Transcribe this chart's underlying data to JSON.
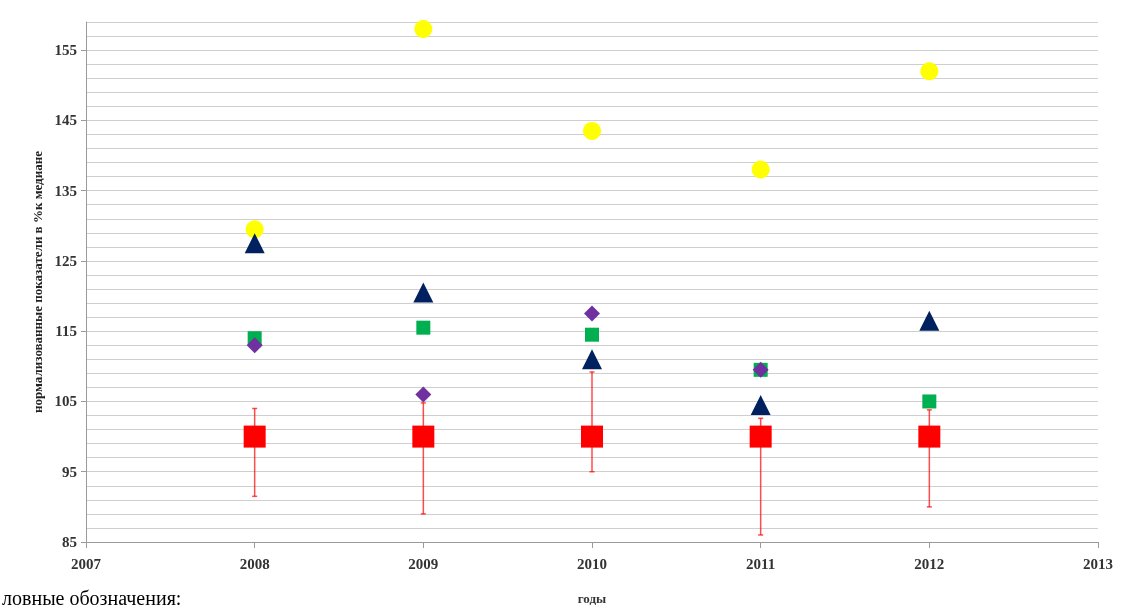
{
  "chart_data": {
    "type": "scatter",
    "xlabel": "годы",
    "ylabel": "нормализованные показатели в %к медиане",
    "annotations": [
      "ловные обозначения:"
    ],
    "x": [
      2008,
      2009,
      2010,
      2011,
      2012
    ],
    "xlim": [
      2007,
      2013
    ],
    "xticks": [
      2007,
      2008,
      2009,
      2010,
      2011,
      2012,
      2013
    ],
    "ylim": [
      85,
      159
    ],
    "yticks": [
      85,
      95,
      105,
      115,
      125,
      135,
      145,
      155
    ],
    "grid": "y",
    "series": [
      {
        "color": "#ff0000",
        "marker": "square",
        "values": [
          100,
          100,
          100,
          100,
          100
        ],
        "errors": [
          [
            91.5,
            104
          ],
          [
            89,
            104.8
          ],
          [
            95,
            109.2
          ],
          [
            86,
            102.6
          ],
          [
            90,
            103.8
          ]
        ]
      },
      {
        "color": "#ffff00",
        "marker": "circle",
        "values": [
          129.5,
          158,
          143.5,
          138,
          152
        ]
      },
      {
        "color": "#002060",
        "marker": "triangle",
        "values": [
          127.5,
          120.5,
          111,
          104.5,
          116.5
        ]
      },
      {
        "color": "#00b050",
        "marker": "square",
        "values": [
          114,
          115.5,
          114.5,
          109.5,
          105
        ]
      },
      {
        "color": "#7030a0",
        "marker": "diamond",
        "values": [
          113,
          106,
          117.5,
          109.5,
          null
        ]
      }
    ]
  }
}
